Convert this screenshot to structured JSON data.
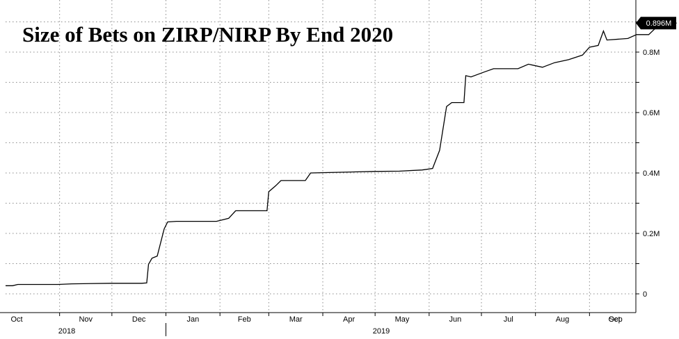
{
  "chart_data": {
    "type": "line",
    "title": "Size of Bets on ZIRP/NIRP By End 2020",
    "xlabel": "",
    "ylabel": "",
    "ylim": [
      0,
      0.96
    ],
    "y_ticks": [
      0,
      0.2,
      0.4,
      0.6,
      0.8
    ],
    "y_tick_labels": [
      "0",
      "0.2M",
      "0.4M",
      "0.6M",
      "0.8M"
    ],
    "x_tick_labels": [
      "Oct",
      "Nov",
      "Dec",
      "Jan",
      "Feb",
      "Mar",
      "Apr",
      "May",
      "Jun",
      "Jul",
      "Aug",
      "Sep",
      "Oct"
    ],
    "x_year_labels": [
      "2018",
      "2019"
    ],
    "last_value_label": "0.896M",
    "last_value": 0.896,
    "grid": true,
    "series": [
      {
        "values": [
          [
            "2018-10-01",
            0.027
          ],
          [
            "2018-10-05",
            0.027
          ],
          [
            "2018-10-08",
            0.031
          ],
          [
            "2018-10-31",
            0.031
          ],
          [
            "2018-11-08",
            0.033
          ],
          [
            "2018-11-30",
            0.035
          ],
          [
            "2018-12-18",
            0.035
          ],
          [
            "2018-12-21",
            0.036
          ],
          [
            "2018-12-22",
            0.098
          ],
          [
            "2018-12-24",
            0.118
          ],
          [
            "2018-12-27",
            0.125
          ],
          [
            "2018-12-31",
            0.215
          ],
          [
            "2019-01-02",
            0.238
          ],
          [
            "2019-01-07",
            0.24
          ],
          [
            "2019-01-30",
            0.24
          ],
          [
            "2019-02-06",
            0.25
          ],
          [
            "2019-02-10",
            0.275
          ],
          [
            "2019-02-28",
            0.275
          ],
          [
            "2019-03-01",
            0.338
          ],
          [
            "2019-03-05",
            0.358
          ],
          [
            "2019-03-08",
            0.375
          ],
          [
            "2019-03-22",
            0.375
          ],
          [
            "2019-03-25",
            0.4
          ],
          [
            "2019-04-30",
            0.405
          ],
          [
            "2019-05-15",
            0.406
          ],
          [
            "2019-05-28",
            0.41
          ],
          [
            "2019-06-03",
            0.415
          ],
          [
            "2019-06-07",
            0.475
          ],
          [
            "2019-06-11",
            0.62
          ],
          [
            "2019-06-14",
            0.633
          ],
          [
            "2019-06-21",
            0.633
          ],
          [
            "2019-06-22",
            0.722
          ],
          [
            "2019-06-25",
            0.718
          ],
          [
            "2019-07-03",
            0.735
          ],
          [
            "2019-07-08",
            0.745
          ],
          [
            "2019-07-22",
            0.745
          ],
          [
            "2019-07-28",
            0.76
          ],
          [
            "2019-08-05",
            0.75
          ],
          [
            "2019-08-12",
            0.765
          ],
          [
            "2019-08-20",
            0.775
          ],
          [
            "2019-08-28",
            0.79
          ],
          [
            "2019-09-01",
            0.816
          ],
          [
            "2019-09-06",
            0.822
          ],
          [
            "2019-09-09",
            0.87
          ],
          [
            "2019-09-11",
            0.84
          ],
          [
            "2019-09-23",
            0.845
          ],
          [
            "2019-09-28",
            0.858
          ],
          [
            "2019-10-05",
            0.858
          ],
          [
            "2019-10-09",
            0.88
          ],
          [
            "2019-10-14",
            0.893
          ],
          [
            "2019-10-21",
            0.896
          ]
        ]
      }
    ]
  }
}
